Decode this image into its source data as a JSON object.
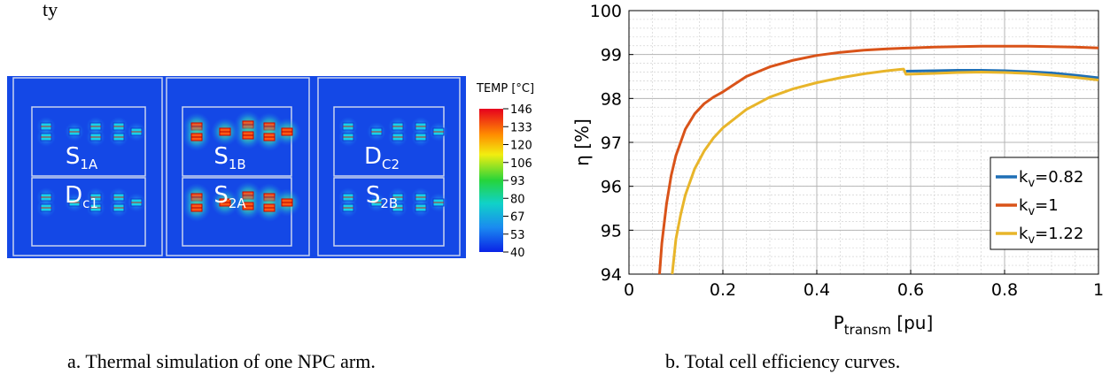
{
  "top_text": "ty",
  "thermal": {
    "legend_title": "TEMP [°C]",
    "legend_ticks": [
      "146",
      "133",
      "120",
      "106",
      "93",
      "80",
      "67",
      "53",
      "40"
    ],
    "colors": {
      "background": "#1448e6",
      "box_line": "#c8d2ee"
    },
    "modules": [
      {
        "base": "S",
        "sub": "1A",
        "intensity": "low"
      },
      {
        "base": "D",
        "sub": "c1",
        "intensity": "low"
      },
      {
        "base": "S",
        "sub": "1B",
        "intensity": "high"
      },
      {
        "base": "S",
        "sub": "2A",
        "intensity": "high"
      },
      {
        "base": "D",
        "sub": "C2",
        "intensity": "low"
      },
      {
        "base": "S",
        "sub": "2B",
        "intensity": "low"
      }
    ],
    "caption": "a. Thermal simulation of one NPC arm."
  },
  "chart_data": {
    "type": "line",
    "xlabel": {
      "base": "P",
      "sub": "transm",
      "unit": " [pu]"
    },
    "ylabel": "η [%]",
    "xlim": [
      0,
      1
    ],
    "ylim": [
      94,
      100
    ],
    "xticks": [
      "0",
      "0.2",
      "0.4",
      "0.6",
      "0.8",
      "1"
    ],
    "yticks": [
      "94",
      "95",
      "96",
      "97",
      "98",
      "99",
      "100"
    ],
    "grid": true,
    "minor_grid": true,
    "legend_position": "lower-right",
    "series": [
      {
        "name": "k_v=0.82",
        "label_base": "k",
        "label_sub": "v",
        "label_rest": "=0.82",
        "color": "#1f6fb5",
        "x": [
          0.59,
          0.65,
          0.7,
          0.75,
          0.8,
          0.85,
          0.9,
          0.95,
          1.0
        ],
        "y": [
          98.62,
          98.63,
          98.64,
          98.64,
          98.63,
          98.61,
          98.58,
          98.53,
          98.47
        ]
      },
      {
        "name": "k_v=1",
        "label_base": "k",
        "label_sub": "v",
        "label_rest": "=1",
        "color": "#d95319",
        "x": [
          0.065,
          0.07,
          0.08,
          0.09,
          0.1,
          0.12,
          0.14,
          0.16,
          0.18,
          0.2,
          0.25,
          0.3,
          0.35,
          0.4,
          0.45,
          0.5,
          0.55,
          0.6,
          0.65,
          0.7,
          0.75,
          0.8,
          0.85,
          0.9,
          0.95,
          1.0
        ],
        "y": [
          94.0,
          94.7,
          95.6,
          96.25,
          96.7,
          97.3,
          97.65,
          97.88,
          98.03,
          98.15,
          98.5,
          98.72,
          98.87,
          98.98,
          99.05,
          99.1,
          99.13,
          99.15,
          99.17,
          99.18,
          99.19,
          99.19,
          99.19,
          99.18,
          99.17,
          99.15
        ]
      },
      {
        "name": "k_v=1.22",
        "label_base": "k",
        "label_sub": "v",
        "label_rest": "=1.22",
        "color": "#e8b52a",
        "x": [
          0.092,
          0.1,
          0.11,
          0.12,
          0.14,
          0.16,
          0.18,
          0.2,
          0.25,
          0.3,
          0.35,
          0.4,
          0.45,
          0.5,
          0.55,
          0.585,
          0.59,
          0.65,
          0.7,
          0.75,
          0.8,
          0.85,
          0.9,
          0.95,
          1.0
        ],
        "y": [
          94.0,
          94.8,
          95.35,
          95.8,
          96.4,
          96.8,
          97.1,
          97.33,
          97.75,
          98.03,
          98.22,
          98.36,
          98.47,
          98.56,
          98.63,
          98.67,
          98.55,
          98.57,
          98.59,
          98.6,
          98.59,
          98.57,
          98.53,
          98.48,
          98.42
        ]
      }
    ],
    "caption": "b. Total cell efficiency curves."
  }
}
